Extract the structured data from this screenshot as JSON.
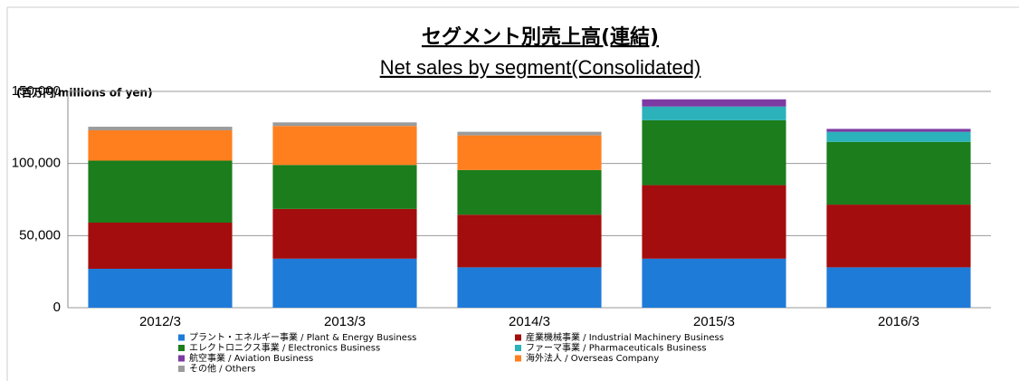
{
  "chart_data": {
    "type": "stacked_bar",
    "title": "セグメント別売上高(連結)",
    "subtitle": "Net sales by segment(Consolidated)",
    "unit_label": "(百万円/millions of yen)",
    "categories": [
      "2012/3",
      "2013/3",
      "2014/3",
      "2015/3",
      "2016/3"
    ],
    "series": [
      {
        "name": "プラント・エネルギー事業 / Plant & Energy Business",
        "color": "#1f7bd8",
        "values": [
          27000,
          34000,
          28000,
          34000,
          28000
        ]
      },
      {
        "name": "産業機械事業 / Industrial Machinery Business",
        "color": "#a30d0d",
        "values": [
          32000,
          34500,
          36500,
          51000,
          43500
        ]
      },
      {
        "name": "エレクトロニクス事業 / Electronics Business",
        "color": "#1b7d1b",
        "values": [
          43000,
          30500,
          31000,
          45000,
          43500
        ]
      },
      {
        "name": "ファーマ事業 / Pharmaceuticals Business",
        "color": "#2bb2bb",
        "values": [
          0,
          0,
          0,
          9500,
          7000
        ]
      },
      {
        "name": "航空事業 / Aviation Business",
        "color": "#7d3aa3",
        "values": [
          0,
          0,
          0,
          5000,
          2000
        ]
      },
      {
        "name": "海外法人 / Overseas Company",
        "color": "#ff7f1e",
        "values": [
          21000,
          27000,
          24000,
          0,
          0
        ]
      },
      {
        "name": "その他 / Others",
        "color": "#9b9b9b",
        "values": [
          2500,
          2500,
          2500,
          0,
          0
        ]
      }
    ],
    "ylim": [
      0,
      150000
    ],
    "yticks": [
      0,
      {
        "value": 50000,
        "label": "50,000"
      },
      {
        "value": 100000,
        "label": "100,000"
      },
      {
        "value": 150000,
        "label": "150,000"
      }
    ],
    "grid": true
  }
}
